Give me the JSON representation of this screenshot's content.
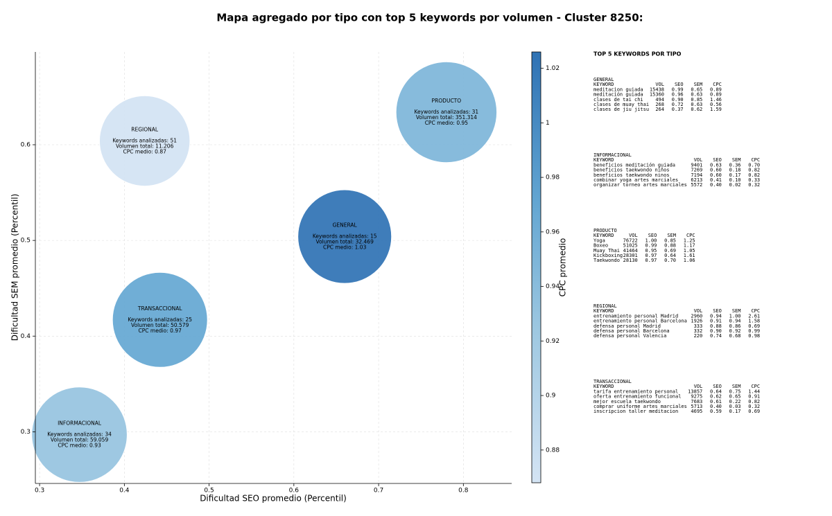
{
  "chart_data": {
    "type": "bubble",
    "title": "Mapa agregado por tipo con top 5 keywords por volumen - Cluster 8250:",
    "x_label": "Dificultad SEO promedio (Percentil)",
    "y_label": "Dificultad SEM promedio (Percentil)",
    "colorbar_label": "CPC promedio",
    "xlim": [
      0.295,
      0.857
    ],
    "xticks": [
      0.3,
      0.4,
      0.5,
      0.6,
      0.7,
      0.8
    ],
    "ylim": [
      0.246,
      0.697
    ],
    "yticks": [
      0.3,
      0.4,
      0.5,
      0.6
    ],
    "clim": [
      0.868,
      1.026
    ],
    "cticks": [
      0.88,
      0.9,
      0.92,
      0.94,
      0.96,
      0.98,
      1.0,
      1.02
    ],
    "grid": true,
    "points": [
      {
        "name": "PRODUCTO",
        "x": 0.78,
        "y": 0.634,
        "keywords": 31,
        "volume": 351314,
        "cpc": 0.95,
        "label_lines": [
          "Keywords analizadas: 31",
          "Volumen total: 351.314",
          "CPC medio: 0.95"
        ]
      },
      {
        "name": "REGIONAL",
        "x": 0.424,
        "y": 0.604,
        "keywords": 51,
        "volume": 11206,
        "cpc": 0.87,
        "label_lines": [
          "Keywords analizadas: 51",
          "Volumen total: 11.206",
          "CPC medio: 0.87"
        ]
      },
      {
        "name": "GENERAL",
        "x": 0.66,
        "y": 0.504,
        "keywords": 15,
        "volume": 32469,
        "cpc": 1.03,
        "label_lines": [
          "Keywords analizadas: 15",
          "Volumen total: 32.469",
          "CPC medio: 1.03"
        ]
      },
      {
        "name": "TRANSACCIONAL",
        "x": 0.442,
        "y": 0.417,
        "keywords": 25,
        "volume": 50579,
        "cpc": 0.97,
        "label_lines": [
          "Keywords analizadas: 25",
          "Volumen total: 50.579",
          "CPC medio: 0.97"
        ]
      },
      {
        "name": "INFORMACIONAL",
        "x": 0.347,
        "y": 0.297,
        "keywords": 34,
        "volume": 59059,
        "cpc": 0.93,
        "label_lines": [
          "Keywords analizadas: 34",
          "Volumen total: 59.059",
          "CPC medio: 0.93"
        ]
      }
    ]
  },
  "side_panel": {
    "title": "TOP 5 KEYWORDS POR TIPO",
    "groups": [
      {
        "name": "GENERAL",
        "columns": [
          "KEYWORD",
          "VOL",
          "SEO",
          "SEM",
          "CPC"
        ],
        "rows": [
          [
            "meditacion guiada",
            "15438",
            "0.99",
            "0.65",
            "0.89"
          ],
          [
            "meditación guiada",
            "15360",
            "0.96",
            "0.63",
            "0.89"
          ],
          [
            "clases de tai chi",
            "494",
            "0.90",
            "0.85",
            "1.46"
          ],
          [
            "clases de muay thai",
            "268",
            "0.72",
            "0.63",
            "0.56"
          ],
          [
            "clases de jiu jitsu",
            "264",
            "0.37",
            "0.62",
            "1.59"
          ]
        ]
      },
      {
        "name": "INFORMACIONAL",
        "columns": [
          "KEYWORD",
          "VOL",
          "SEO",
          "SEM",
          "CPC"
        ],
        "rows": [
          [
            "beneficios meditación guiada",
            "9401",
            "0.63",
            "0.36",
            "0.70"
          ],
          [
            "beneficios taekwondo niños",
            "7269",
            "0.60",
            "0.18",
            "0.82"
          ],
          [
            "beneficios taekwondo ninos",
            "7194",
            "0.60",
            "0.17",
            "0.82"
          ],
          [
            "combinar yoga artes marciales",
            "6213",
            "0.41",
            "0.10",
            "0.33"
          ],
          [
            "organizar torneo artes marciales",
            "5572",
            "0.40",
            "0.02",
            "0.32"
          ]
        ]
      },
      {
        "name": "PRODUCTO",
        "columns": [
          "KEYWORD",
          "VOL",
          "SEO",
          "SEM",
          "CPC"
        ],
        "rows": [
          [
            "Yoga",
            "76722",
            "1.00",
            "0.85",
            "1.25"
          ],
          [
            "Boxeo",
            "51025",
            "0.99",
            "0.88",
            "1.17"
          ],
          [
            "Muay Thai",
            "41464",
            "0.95",
            "0.69",
            "1.05"
          ],
          [
            "Kickboxing",
            "28301",
            "0.97",
            "0.64",
            "1.61"
          ],
          [
            "Taekwondo",
            "28130",
            "0.97",
            "0.70",
            "1.06"
          ]
        ]
      },
      {
        "name": "REGIONAL",
        "columns": [
          "KEYWORD",
          "VOL",
          "SEO",
          "SEM",
          "CPC"
        ],
        "rows": [
          [
            "entrenamiento personal Madrid",
            "2960",
            "0.94",
            "1.00",
            "2.61"
          ],
          [
            "entrenamiento personal Barcelona",
            "1926",
            "0.91",
            "0.94",
            "1.58"
          ],
          [
            "defensa personal Madrid",
            "333",
            "0.88",
            "0.86",
            "0.69"
          ],
          [
            "defensa personal Barcelona",
            "332",
            "0.90",
            "0.92",
            "0.99"
          ],
          [
            "defensa personal Valencia",
            "220",
            "0.74",
            "0.68",
            "0.98"
          ]
        ]
      },
      {
        "name": "TRANSACCIONAL",
        "columns": [
          "KEYWORD",
          "VOL",
          "SEO",
          "SEM",
          "CPC"
        ],
        "rows": [
          [
            "tarifa entrenamiento personal",
            "13857",
            "0.64",
            "0.75",
            "1.44"
          ],
          [
            "oferta entrenamiento funcional",
            "9275",
            "0.62",
            "0.65",
            "0.91"
          ],
          [
            "mejor escuela taekwondo",
            "7683",
            "0.61",
            "0.22",
            "0.82"
          ],
          [
            "comprar uniforme artes marciales",
            "5713",
            "0.40",
            "0.03",
            "0.32"
          ],
          [
            "inscripcion taller meditacion",
            "4695",
            "0.59",
            "0.17",
            "0.69"
          ]
        ]
      }
    ]
  }
}
